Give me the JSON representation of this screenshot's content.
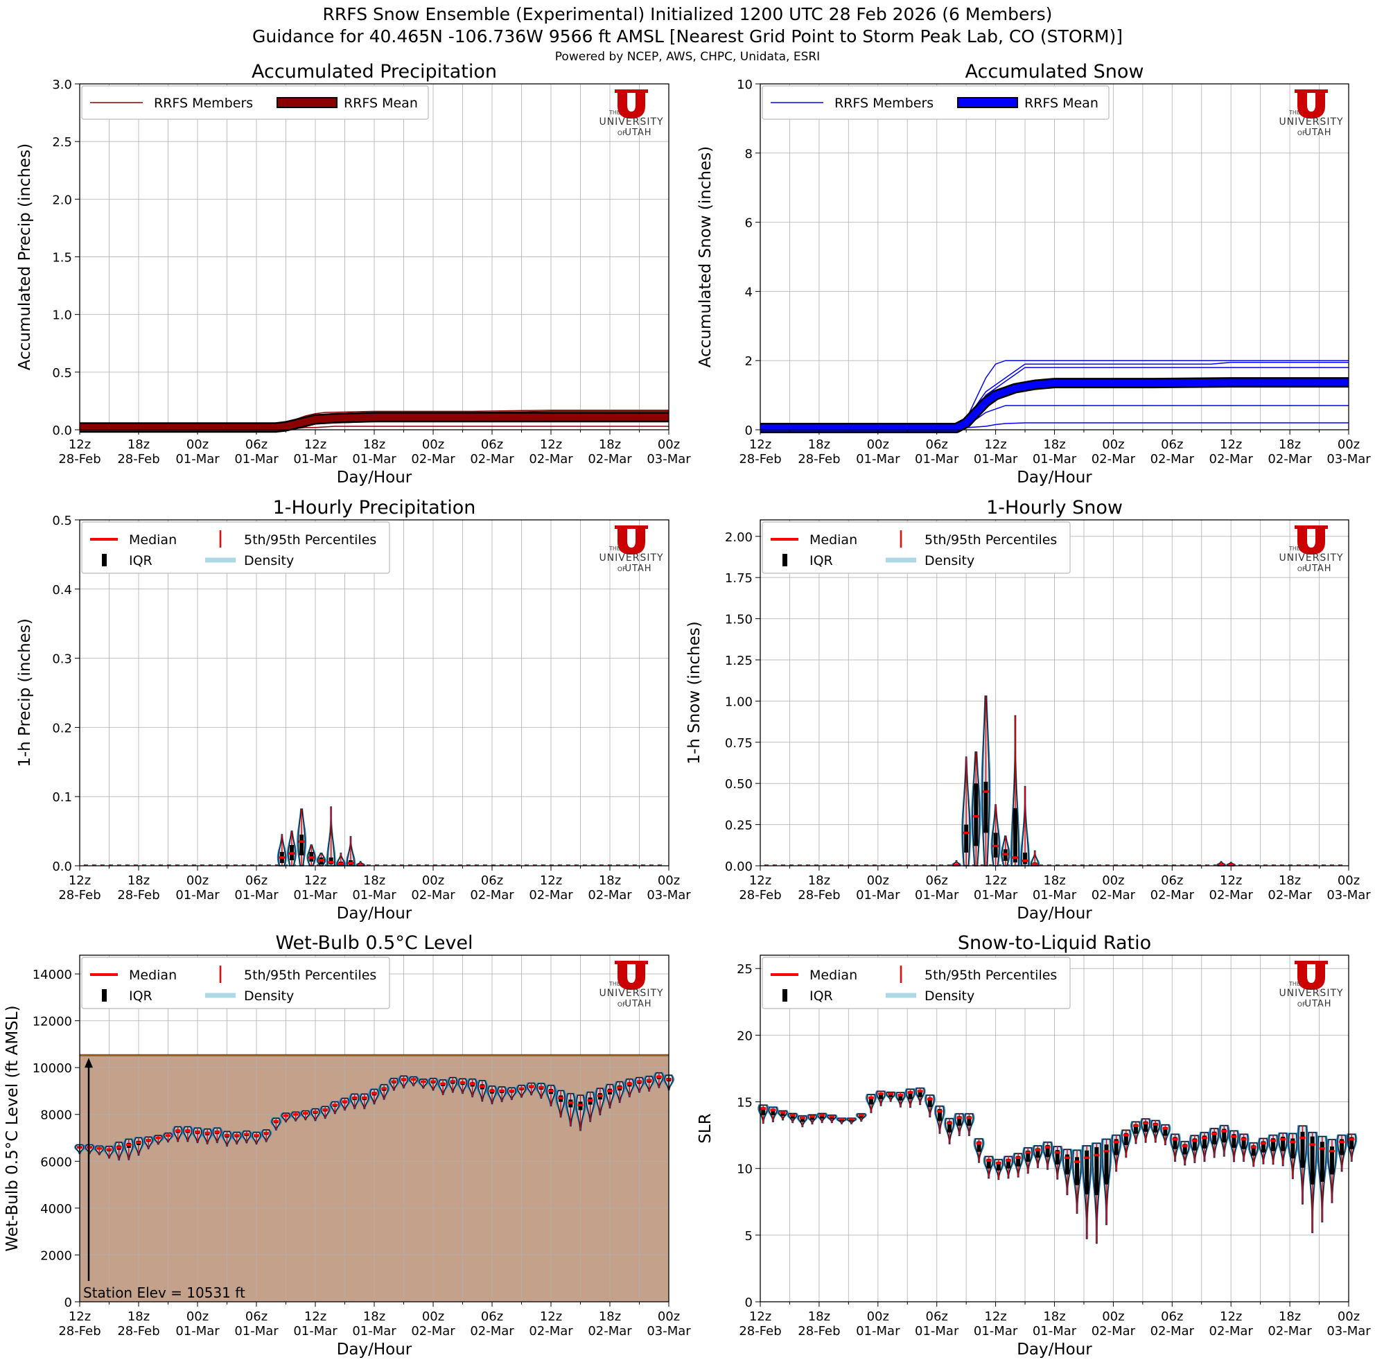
{
  "header": {
    "title_line1": "RRFS Snow Ensemble (Experimental) Initialized 1200 UTC 28 Feb 2026 (6 Members)",
    "title_line2": "Guidance for 40.465N -106.736W 9566 ft AMSL [Nearest Grid Point to Storm Peak Lab, CO (STORM)]",
    "subtitle": "Powered by NCEP, AWS, CHPC, Unidata, ESRI"
  },
  "logo": {
    "text_the": "THE",
    "text_university": "UNIVERSITY",
    "text_of": "OF",
    "text_utah": "UTAH",
    "color": "#cc0000"
  },
  "colors": {
    "red": "#ff0000",
    "darkred": "#8b0000",
    "blue": "#0000ff",
    "lightblue": "#add8e6",
    "terrain": "#c4a18a",
    "terrain_edge": "#8b5a2b",
    "violin_edge": "#1f77b4"
  },
  "x_ticks": [
    {
      "hour": 0,
      "l1": "12z",
      "l2": "28-Feb"
    },
    {
      "hour": 6,
      "l1": "18z",
      "l2": "28-Feb"
    },
    {
      "hour": 12,
      "l1": "00z",
      "l2": "01-Mar"
    },
    {
      "hour": 18,
      "l1": "06z",
      "l2": "01-Mar"
    },
    {
      "hour": 24,
      "l1": "12z",
      "l2": "01-Mar"
    },
    {
      "hour": 30,
      "l1": "18z",
      "l2": "01-Mar"
    },
    {
      "hour": 36,
      "l1": "00z",
      "l2": "02-Mar"
    },
    {
      "hour": 42,
      "l1": "06z",
      "l2": "02-Mar"
    },
    {
      "hour": 48,
      "l1": "12z",
      "l2": "02-Mar"
    },
    {
      "hour": 54,
      "l1": "18z",
      "l2": "02-Mar"
    },
    {
      "hour": 60,
      "l1": "00z",
      "l2": "03-Mar"
    }
  ],
  "chart_data": [
    {
      "id": "accum_precip",
      "type": "line",
      "title": "Accumulated Precipitation",
      "xlabel": "Day/Hour",
      "ylabel": "Accumulated Precip (inches)",
      "xlim": [
        0,
        60
      ],
      "ylim": [
        0,
        3.0
      ],
      "yticks": [
        0.0,
        0.5,
        1.0,
        1.5,
        2.0,
        2.5,
        3.0
      ],
      "ydecimals": 1,
      "legend": [
        "RRFS Members",
        "RRFS Mean"
      ],
      "legend_position": "upper-left",
      "member_color": "darkred",
      "mean_color": "darkred",
      "members": [
        {
          "x": [
            0,
            20,
            21,
            22,
            23,
            24,
            25,
            30,
            40,
            48,
            60
          ],
          "y": [
            0.02,
            0.02,
            0.05,
            0.09,
            0.12,
            0.14,
            0.15,
            0.16,
            0.16,
            0.17,
            0.17
          ]
        },
        {
          "x": [
            0,
            20,
            21,
            22,
            23,
            24,
            26,
            30,
            40,
            48,
            60
          ],
          "y": [
            0.02,
            0.02,
            0.04,
            0.08,
            0.11,
            0.13,
            0.14,
            0.15,
            0.15,
            0.16,
            0.16
          ]
        },
        {
          "x": [
            0,
            20,
            21,
            22,
            23,
            24,
            26,
            30,
            40,
            48,
            60
          ],
          "y": [
            0.02,
            0.02,
            0.03,
            0.06,
            0.08,
            0.1,
            0.12,
            0.13,
            0.13,
            0.13,
            0.13
          ]
        },
        {
          "x": [
            0,
            20,
            21,
            22,
            23,
            24,
            26,
            30,
            40,
            48,
            60
          ],
          "y": [
            0.02,
            0.02,
            0.03,
            0.05,
            0.06,
            0.08,
            0.09,
            0.1,
            0.1,
            0.1,
            0.1
          ]
        },
        {
          "x": [
            0,
            20,
            21,
            22,
            23,
            24,
            26,
            30,
            40,
            48,
            60
          ],
          "y": [
            0.02,
            0.02,
            0.02,
            0.03,
            0.04,
            0.05,
            0.06,
            0.07,
            0.07,
            0.07,
            0.07
          ]
        },
        {
          "x": [
            0,
            20,
            21,
            22,
            23,
            24,
            26,
            30,
            40,
            48,
            60
          ],
          "y": [
            0.01,
            0.01,
            0.01,
            0.01,
            0.02,
            0.02,
            0.03,
            0.03,
            0.03,
            0.03,
            0.03
          ]
        }
      ],
      "mean": {
        "x": [
          0,
          20,
          21,
          22,
          23,
          24,
          26,
          30,
          40,
          48,
          60
        ],
        "y": [
          0.02,
          0.02,
          0.03,
          0.05,
          0.07,
          0.09,
          0.1,
          0.11,
          0.11,
          0.11,
          0.11
        ]
      }
    },
    {
      "id": "accum_snow",
      "type": "line",
      "title": "Accumulated Snow",
      "xlabel": "Day/Hour",
      "ylabel": "Accumulated Snow (inches)",
      "xlim": [
        0,
        60
      ],
      "ylim": [
        0,
        10
      ],
      "yticks": [
        0,
        2,
        4,
        6,
        8,
        10
      ],
      "ydecimals": 0,
      "legend": [
        "RRFS Members",
        "RRFS Mean"
      ],
      "legend_position": "upper-left",
      "member_color": "blue",
      "mean_color": "blue",
      "members": [
        {
          "x": [
            0,
            20,
            21,
            22,
            23,
            24,
            25,
            26,
            30,
            40,
            50,
            60
          ],
          "y": [
            0.05,
            0.05,
            0.3,
            0.9,
            1.5,
            1.9,
            2.0,
            2.0,
            2.0,
            2.0,
            2.0,
            2.0
          ]
        },
        {
          "x": [
            0,
            20,
            21,
            22,
            23,
            24,
            25,
            27,
            30,
            40,
            46,
            48,
            60
          ],
          "y": [
            0.05,
            0.05,
            0.2,
            0.7,
            1.1,
            1.3,
            1.5,
            1.9,
            1.9,
            1.9,
            1.9,
            1.95,
            1.95
          ]
        },
        {
          "x": [
            0,
            20,
            21,
            22,
            23,
            24,
            25,
            26,
            27,
            30,
            40,
            60
          ],
          "y": [
            0.05,
            0.05,
            0.2,
            0.6,
            1.0,
            1.2,
            1.4,
            1.6,
            1.8,
            1.8,
            1.8,
            1.8
          ]
        },
        {
          "x": [
            0,
            20,
            21,
            22,
            23,
            24,
            25,
            26,
            28,
            30,
            40,
            60
          ],
          "y": [
            0.05,
            0.05,
            0.2,
            0.5,
            0.8,
            1.0,
            1.1,
            1.2,
            1.35,
            1.4,
            1.4,
            1.4
          ]
        },
        {
          "x": [
            0,
            20,
            21,
            22,
            23,
            24,
            25,
            27,
            30,
            40,
            60
          ],
          "y": [
            0.05,
            0.05,
            0.1,
            0.3,
            0.5,
            0.6,
            0.7,
            0.7,
            0.7,
            0.7,
            0.7
          ]
        },
        {
          "x": [
            0,
            20,
            21,
            22,
            23,
            24,
            25,
            27,
            30,
            40,
            60
          ],
          "y": [
            0.05,
            0.05,
            0.06,
            0.08,
            0.1,
            0.15,
            0.18,
            0.2,
            0.2,
            0.2,
            0.2
          ]
        }
      ],
      "mean": {
        "x": [
          0,
          20,
          21,
          22,
          23,
          24,
          25,
          26,
          27,
          28,
          30,
          40,
          48,
          60
        ],
        "y": [
          0.05,
          0.05,
          0.2,
          0.5,
          0.8,
          1.0,
          1.1,
          1.2,
          1.25,
          1.3,
          1.35,
          1.35,
          1.37,
          1.37
        ]
      }
    },
    {
      "id": "hourly_precip",
      "type": "violin",
      "title": "1-Hourly Precipitation",
      "xlabel": "Day/Hour",
      "ylabel": "1-h Precip (inches)",
      "xlim": [
        0,
        60
      ],
      "ylim": [
        0,
        0.5
      ],
      "yticks": [
        0.0,
        0.1,
        0.2,
        0.3,
        0.4,
        0.5
      ],
      "ydecimals": 1,
      "legend": [
        "Median",
        "5th/95th Percentiles",
        "IQR",
        "Density"
      ],
      "legend_position": "upper-left",
      "violins": [
        {
          "x": 20.6,
          "p5": 0.0,
          "q1": 0.004,
          "med": 0.012,
          "q3": 0.02,
          "p95": 0.045
        },
        {
          "x": 21.6,
          "p5": 0.0,
          "q1": 0.008,
          "med": 0.018,
          "q3": 0.03,
          "p95": 0.05
        },
        {
          "x": 22.6,
          "p5": 0.0,
          "q1": 0.015,
          "med": 0.035,
          "q3": 0.045,
          "p95": 0.082
        },
        {
          "x": 23.6,
          "p5": 0.0,
          "q1": 0.006,
          "med": 0.012,
          "q3": 0.02,
          "p95": 0.03
        },
        {
          "x": 24.6,
          "p5": 0.0,
          "q1": 0.002,
          "med": 0.008,
          "q3": 0.012,
          "p95": 0.018
        },
        {
          "x": 25.6,
          "p5": 0.0,
          "q1": 0.002,
          "med": 0.005,
          "q3": 0.012,
          "p95": 0.085
        },
        {
          "x": 26.6,
          "p5": 0.0,
          "q1": 0.001,
          "med": 0.003,
          "q3": 0.006,
          "p95": 0.018
        },
        {
          "x": 27.6,
          "p5": 0.0,
          "q1": 0.001,
          "med": 0.004,
          "q3": 0.008,
          "p95": 0.042
        },
        {
          "x": 28.6,
          "p5": 0.0,
          "q1": 0.0,
          "med": 0.001,
          "q3": 0.002,
          "p95": 0.006
        }
      ]
    },
    {
      "id": "hourly_snow",
      "type": "violin",
      "title": "1-Hourly Snow",
      "xlabel": "Day/Hour",
      "ylabel": "1-h Snow (inches)",
      "xlim": [
        0,
        60
      ],
      "ylim": [
        0,
        2.1
      ],
      "yticks": [
        0.0,
        0.25,
        0.5,
        0.75,
        1.0,
        1.25,
        1.5,
        1.75,
        2.0
      ],
      "ydecimals": 2,
      "legend": [
        "Median",
        "5th/95th Percentiles",
        "IQR",
        "Density"
      ],
      "legend_position": "upper-left",
      "violins": [
        {
          "x": 20.0,
          "p5": 0.0,
          "q1": 0.0,
          "med": 0.005,
          "q3": 0.01,
          "p95": 0.03
        },
        {
          "x": 21.0,
          "p5": 0.0,
          "q1": 0.08,
          "med": 0.2,
          "q3": 0.25,
          "p95": 0.66
        },
        {
          "x": 22.0,
          "p5": 0.0,
          "q1": 0.12,
          "med": 0.3,
          "q3": 0.5,
          "p95": 0.69
        },
        {
          "x": 23.0,
          "p5": 0.0,
          "q1": 0.2,
          "med": 0.45,
          "q3": 0.51,
          "p95": 1.03
        },
        {
          "x": 24.0,
          "p5": 0.0,
          "q1": 0.05,
          "med": 0.12,
          "q3": 0.2,
          "p95": 0.37
        },
        {
          "x": 25.0,
          "p5": 0.0,
          "q1": 0.03,
          "med": 0.07,
          "q3": 0.1,
          "p95": 0.18
        },
        {
          "x": 26.0,
          "p5": 0.0,
          "q1": 0.02,
          "med": 0.05,
          "q3": 0.35,
          "p95": 0.91
        },
        {
          "x": 27.0,
          "p5": 0.0,
          "q1": 0.01,
          "med": 0.03,
          "q3": 0.08,
          "p95": 0.48
        },
        {
          "x": 28.0,
          "p5": 0.0,
          "q1": 0.005,
          "med": 0.01,
          "q3": 0.02,
          "p95": 0.09
        },
        {
          "x": 47.0,
          "p5": 0.0,
          "q1": 0.0,
          "med": 0.005,
          "q3": 0.01,
          "p95": 0.025
        },
        {
          "x": 48.0,
          "p5": 0.0,
          "q1": 0.0,
          "med": 0.005,
          "q3": 0.01,
          "p95": 0.02
        }
      ]
    },
    {
      "id": "wetbulb",
      "type": "violin",
      "title": "Wet-Bulb 0.5°C Level",
      "xlabel": "Day/Hour",
      "ylabel": "Wet-Bulb 0.5°C Level (ft AMSL)",
      "xlim": [
        0,
        60
      ],
      "ylim": [
        0,
        14800
      ],
      "yticks": [
        0,
        2000,
        4000,
        6000,
        8000,
        10000,
        12000,
        14000
      ],
      "ydecimals": 0,
      "legend": [
        "Median",
        "5th/95th Percentiles",
        "IQR",
        "Density"
      ],
      "legend_position": "upper-left",
      "station_elev": 10531,
      "station_label": "Station Elev = 10531 ft",
      "medians": [
        6600,
        6600,
        6550,
        6500,
        6600,
        6700,
        6800,
        6900,
        7000,
        7100,
        7300,
        7300,
        7250,
        7200,
        7250,
        7100,
        7100,
        7150,
        7100,
        7200,
        7700,
        7950,
        8000,
        8050,
        8100,
        8200,
        8400,
        8550,
        8700,
        8700,
        8900,
        9100,
        9400,
        9500,
        9500,
        9400,
        9400,
        9300,
        9400,
        9350,
        9300,
        9200,
        9000,
        9000,
        9000,
        9100,
        9200,
        9150,
        9000,
        8700,
        8500,
        8400,
        8600,
        8800,
        9000,
        9150,
        9300,
        9400,
        9450,
        9600,
        9500
      ],
      "spreads": [
        300,
        300,
        300,
        400,
        600,
        700,
        600,
        400,
        300,
        300,
        500,
        500,
        500,
        500,
        500,
        500,
        400,
        400,
        400,
        400,
        400,
        300,
        300,
        300,
        400,
        400,
        400,
        400,
        500,
        500,
        500,
        500,
        400,
        400,
        300,
        300,
        400,
        500,
        500,
        500,
        600,
        700,
        600,
        500,
        400,
        400,
        400,
        500,
        700,
        900,
        1100,
        1200,
        1000,
        900,
        800,
        700,
        600,
        500,
        500,
        500,
        500
      ]
    },
    {
      "id": "slr",
      "type": "violin",
      "title": "Snow-to-Liquid Ratio",
      "xlabel": "Day/Hour",
      "ylabel": "SLR",
      "xlim": [
        0,
        60
      ],
      "ylim": [
        0,
        26
      ],
      "yticks": [
        0,
        5,
        10,
        15,
        20,
        25
      ],
      "ydecimals": 0,
      "legend": [
        "Median",
        "5th/95th Percentiles",
        "IQR",
        "Density"
      ],
      "legend_position": "upper-left",
      "medians": [
        14.5,
        14.4,
        14.2,
        14.0,
        13.8,
        13.9,
        14.0,
        13.9,
        13.7,
        13.7,
        14.0,
        15.3,
        15.6,
        15.6,
        15.5,
        15.7,
        15.8,
        15.2,
        14.3,
        13.4,
        13.8,
        13.8,
        11.9,
        10.6,
        10.4,
        10.6,
        10.8,
        11.2,
        11.4,
        11.6,
        11.2,
        10.8,
        10.5,
        10.8,
        11.0,
        11.3,
        12.0,
        12.5,
        13.2,
        13.4,
        13.3,
        13.0,
        12.2,
        11.7,
        12.1,
        12.3,
        12.6,
        12.8,
        12.4,
        12.2,
        11.6,
        11.9,
        12.1,
        12.2,
        12.0,
        12.3,
        11.8,
        11.5,
        11.3,
        12.0,
        12.2
      ],
      "spreads": [
        1.0,
        0.8,
        0.5,
        0.5,
        0.6,
        0.5,
        0.5,
        0.4,
        0.3,
        0.3,
        0.4,
        1.0,
        0.8,
        0.5,
        0.8,
        1.0,
        0.9,
        1.2,
        1.5,
        1.4,
        1.2,
        1.2,
        1.3,
        1.2,
        1.1,
        1.2,
        1.3,
        1.4,
        1.2,
        1.5,
        1.8,
        2.5,
        3.5,
        5.5,
        6.0,
        5.0,
        2.0,
        1.5,
        1.2,
        1.3,
        1.2,
        1.1,
        1.5,
        1.3,
        1.5,
        1.6,
        1.6,
        1.7,
        1.7,
        1.5,
        1.3,
        1.4,
        1.6,
        1.8,
        2.5,
        4.5,
        6.0,
        5.0,
        3.5,
        2.0,
        1.5
      ]
    }
  ]
}
